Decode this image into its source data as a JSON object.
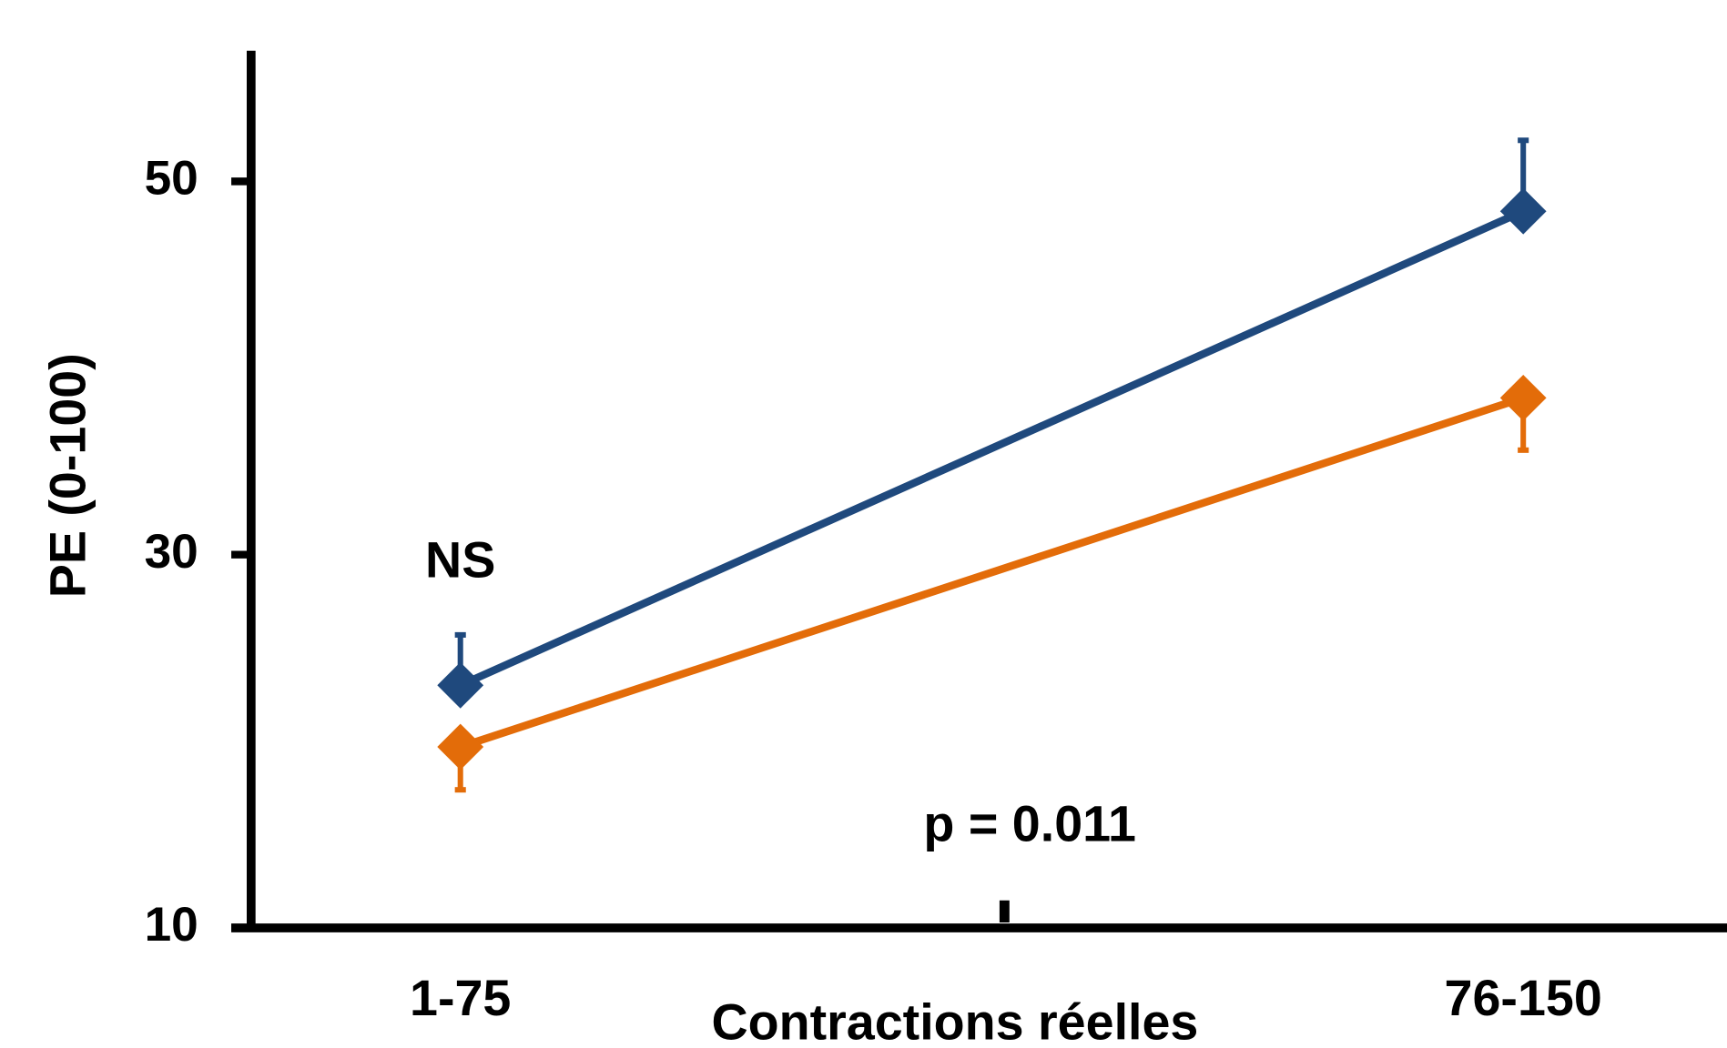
{
  "chart_data": {
    "type": "line",
    "categories": [
      "1-75",
      "76-150"
    ],
    "x_label": "Contractions réelles",
    "y_label": "PE (0-100)",
    "ylim": [
      10,
      57
    ],
    "yticks": [
      10,
      30,
      50
    ],
    "series": [
      {
        "color": "#1f497d",
        "values": [
          23.0,
          48.4
        ],
        "errors": [
          2.7,
          3.8
        ],
        "error_side": "up"
      },
      {
        "color": "#e36c09",
        "values": [
          19.7,
          38.4
        ],
        "errors": [
          2.3,
          2.8
        ],
        "error_side": "down"
      }
    ],
    "annotations": [
      "NS",
      "p = 0.011"
    ]
  }
}
